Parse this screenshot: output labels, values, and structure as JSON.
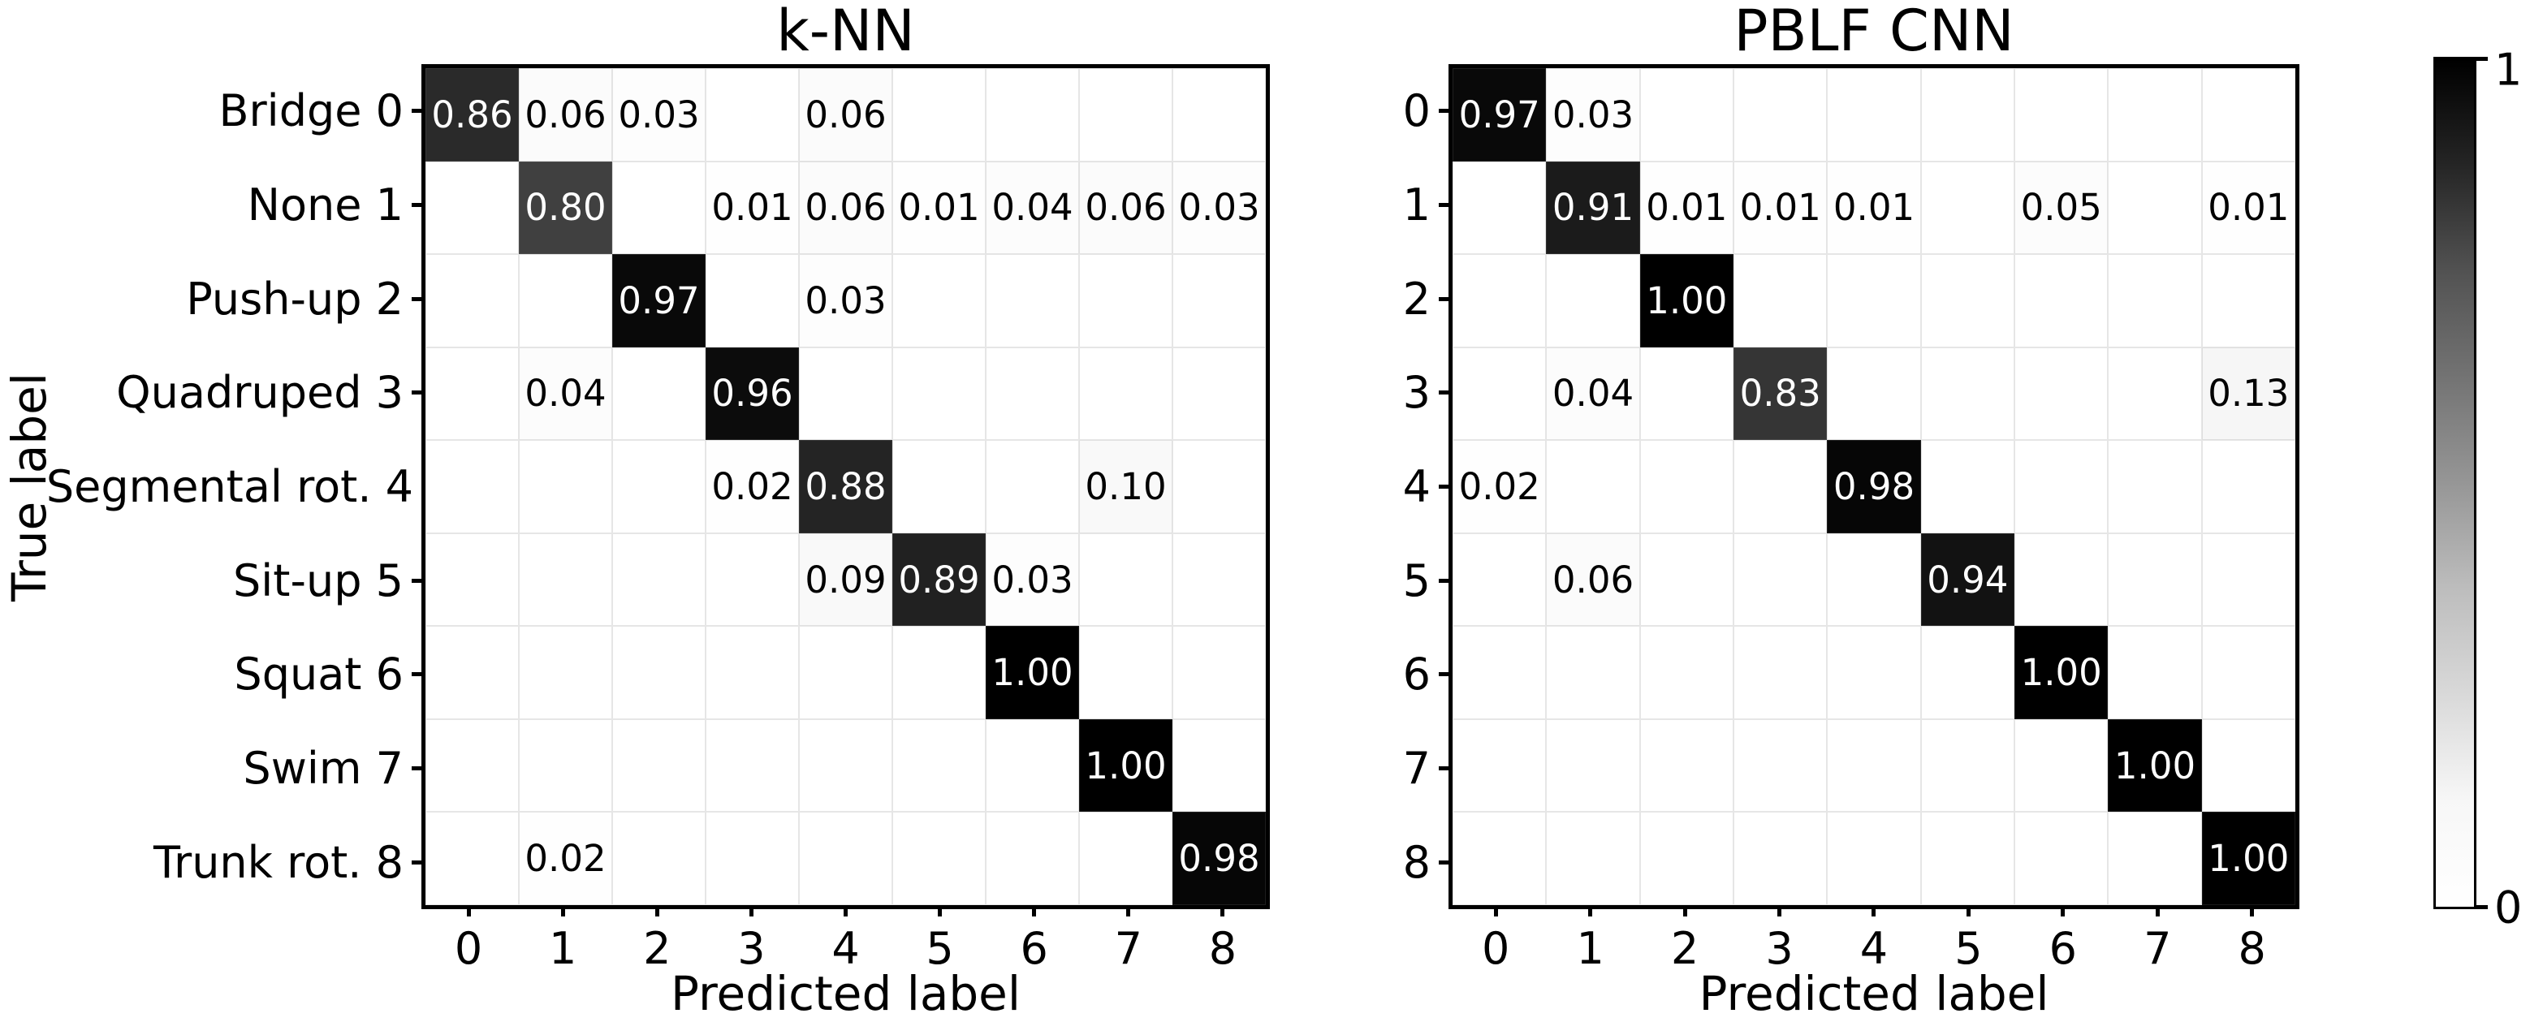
{
  "figure": {
    "background": "#ffffff"
  },
  "chart_data": [
    {
      "type": "heatmap",
      "title": "k-NN",
      "xlabel": "Predicted label",
      "ylabel": "True label",
      "x_ticks": [
        "0",
        "1",
        "2",
        "3",
        "4",
        "5",
        "6",
        "7",
        "8"
      ],
      "y_ticks": [
        "Bridge 0",
        "None 1",
        "Push-up 2",
        "Quadruped 3",
        "Segmental rot. 4",
        "Sit-up 5",
        "Squat 6",
        "Swim 7",
        "Trunk rot. 8"
      ],
      "vmin": 0,
      "vmax": 1,
      "colormap": "Greys",
      "matrix": [
        [
          0.86,
          0.06,
          0.03,
          null,
          0.06,
          null,
          null,
          null,
          null
        ],
        [
          null,
          0.8,
          null,
          0.01,
          0.06,
          0.01,
          0.04,
          0.06,
          0.03
        ],
        [
          null,
          null,
          0.97,
          null,
          0.03,
          null,
          null,
          null,
          null
        ],
        [
          null,
          0.04,
          null,
          0.96,
          null,
          null,
          null,
          null,
          null
        ],
        [
          null,
          null,
          null,
          0.02,
          0.88,
          null,
          null,
          0.1,
          null
        ],
        [
          null,
          null,
          null,
          null,
          0.09,
          0.89,
          0.03,
          null,
          null
        ],
        [
          null,
          null,
          null,
          null,
          null,
          null,
          1.0,
          null,
          null
        ],
        [
          null,
          null,
          null,
          null,
          null,
          null,
          null,
          1.0,
          null
        ],
        [
          null,
          0.02,
          null,
          null,
          null,
          null,
          null,
          null,
          0.98
        ]
      ]
    },
    {
      "type": "heatmap",
      "title": "PBLF CNN",
      "xlabel": "Predicted label",
      "ylabel": "",
      "x_ticks": [
        "0",
        "1",
        "2",
        "3",
        "4",
        "5",
        "6",
        "7",
        "8"
      ],
      "y_ticks": [
        "0",
        "1",
        "2",
        "3",
        "4",
        "5",
        "6",
        "7",
        "8"
      ],
      "vmin": 0,
      "vmax": 1,
      "colormap": "Greys",
      "matrix": [
        [
          0.97,
          0.03,
          null,
          null,
          null,
          null,
          null,
          null,
          null
        ],
        [
          null,
          0.91,
          0.01,
          0.01,
          0.01,
          null,
          0.05,
          null,
          0.01
        ],
        [
          null,
          null,
          1.0,
          null,
          null,
          null,
          null,
          null,
          null
        ],
        [
          null,
          0.04,
          null,
          0.83,
          null,
          null,
          null,
          null,
          0.13
        ],
        [
          0.02,
          null,
          null,
          null,
          0.98,
          null,
          null,
          null,
          null
        ],
        [
          null,
          0.06,
          null,
          null,
          null,
          0.94,
          null,
          null,
          null
        ],
        [
          null,
          null,
          null,
          null,
          null,
          null,
          1.0,
          null,
          null
        ],
        [
          null,
          null,
          null,
          null,
          null,
          null,
          null,
          1.0,
          null
        ],
        [
          null,
          null,
          null,
          null,
          null,
          null,
          null,
          null,
          1.0
        ]
      ]
    }
  ],
  "colorbar": {
    "max_label": "1",
    "min_label": "0",
    "color_max": "#000000",
    "color_min": "#ffffff",
    "gradient_stops": [
      {
        "v": 0.0,
        "hex": "#ffffff"
      },
      {
        "v": 0.125,
        "hex": "#f7f7f7"
      },
      {
        "v": 0.25,
        "hex": "#d9d9d9"
      },
      {
        "v": 0.375,
        "hex": "#bdbdbd"
      },
      {
        "v": 0.5,
        "hex": "#969696"
      },
      {
        "v": 0.625,
        "hex": "#737373"
      },
      {
        "v": 0.75,
        "hex": "#525252"
      },
      {
        "v": 0.875,
        "hex": "#252525"
      },
      {
        "v": 1.0,
        "hex": "#000000"
      }
    ]
  }
}
